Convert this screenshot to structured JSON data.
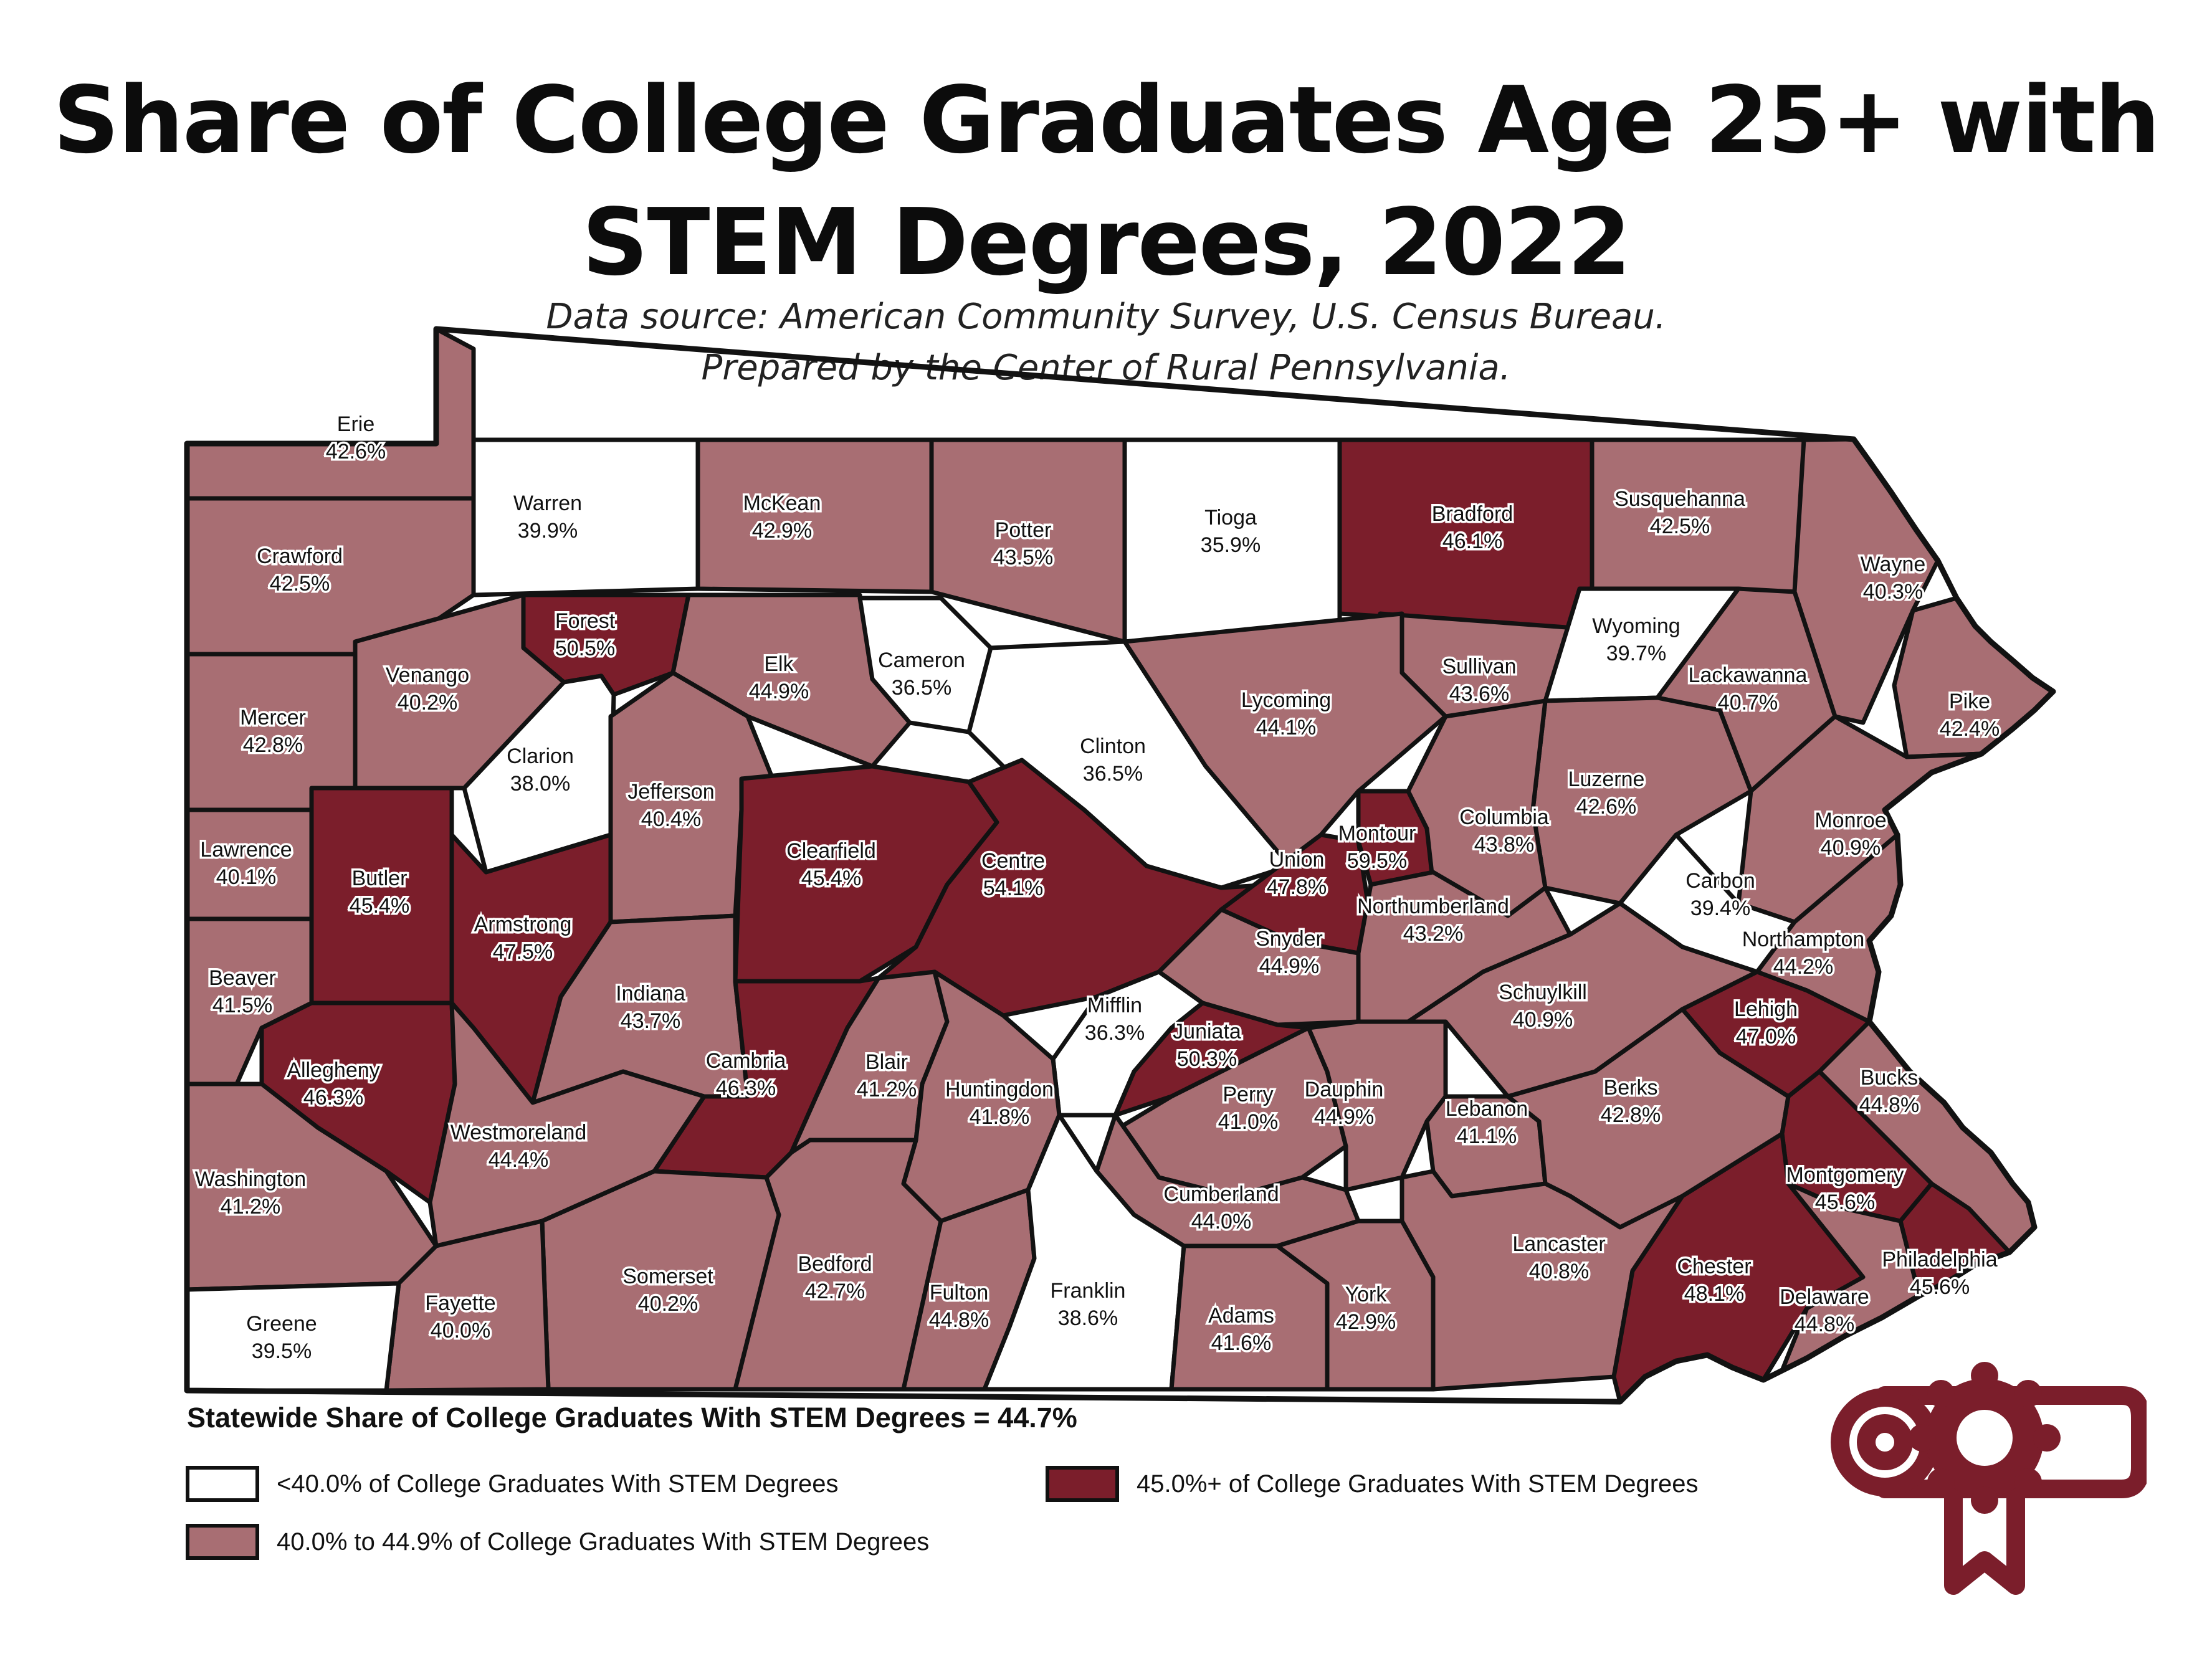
{
  "title": {
    "line1": "Share of College Graduates Age 25+ with",
    "line2": "STEM Degrees, 2022"
  },
  "source": {
    "line1": "Data source: American Community Survey, U.S. Census Bureau.",
    "line2": "Prepared by the Center of Rural Pennsylvania."
  },
  "statewide": "Statewide Share of College Graduates With STEM Degrees = 44.7%",
  "legend": {
    "low": {
      "label": "<40.0% of College Graduates With STEM Degrees",
      "color": "#ffffff"
    },
    "mid": {
      "label": "40.0% to 44.9% of College Graduates With STEM Degrees",
      "color": "#a86e73"
    },
    "high": {
      "label": "45.0%+ of College Graduates With STEM Degrees",
      "color": "#7b1e2b"
    }
  },
  "icon": "diploma-scroll-with-award-ribbon-icon",
  "counties": [
    {
      "name": "Erie",
      "value": "42.6%",
      "tier": "mid"
    },
    {
      "name": "Warren",
      "value": "39.9%",
      "tier": "low"
    },
    {
      "name": "McKean",
      "value": "42.9%",
      "tier": "mid"
    },
    {
      "name": "Potter",
      "value": "43.5%",
      "tier": "mid"
    },
    {
      "name": "Tioga",
      "value": "35.9%",
      "tier": "low"
    },
    {
      "name": "Bradford",
      "value": "46.1%",
      "tier": "high"
    },
    {
      "name": "Susquehanna",
      "value": "42.5%",
      "tier": "mid"
    },
    {
      "name": "Wayne",
      "value": "40.3%",
      "tier": "mid"
    },
    {
      "name": "Crawford",
      "value": "42.5%",
      "tier": "mid"
    },
    {
      "name": "Forest",
      "value": "50.5%",
      "tier": "high"
    },
    {
      "name": "Elk",
      "value": "44.9%",
      "tier": "mid"
    },
    {
      "name": "Cameron",
      "value": "36.5%",
      "tier": "low"
    },
    {
      "name": "Sullivan",
      "value": "43.6%",
      "tier": "mid"
    },
    {
      "name": "Wyoming",
      "value": "39.7%",
      "tier": "low"
    },
    {
      "name": "Lackawanna",
      "value": "40.7%",
      "tier": "mid"
    },
    {
      "name": "Pike",
      "value": "42.4%",
      "tier": "mid"
    },
    {
      "name": "Mercer",
      "value": "42.8%",
      "tier": "mid"
    },
    {
      "name": "Venango",
      "value": "40.2%",
      "tier": "mid"
    },
    {
      "name": "Clarion",
      "value": "38.0%",
      "tier": "low"
    },
    {
      "name": "Jefferson",
      "value": "40.4%",
      "tier": "mid"
    },
    {
      "name": "Clinton",
      "value": "36.5%",
      "tier": "low"
    },
    {
      "name": "Lycoming",
      "value": "44.1%",
      "tier": "mid"
    },
    {
      "name": "Luzerne",
      "value": "42.6%",
      "tier": "mid"
    },
    {
      "name": "Monroe",
      "value": "40.9%",
      "tier": "mid"
    },
    {
      "name": "Lawrence",
      "value": "40.1%",
      "tier": "mid"
    },
    {
      "name": "Butler",
      "value": "45.4%",
      "tier": "high"
    },
    {
      "name": "Armstrong",
      "value": "47.5%",
      "tier": "high"
    },
    {
      "name": "Clearfield",
      "value": "45.4%",
      "tier": "high"
    },
    {
      "name": "Centre",
      "value": "54.1%",
      "tier": "high"
    },
    {
      "name": "Union",
      "value": "47.8%",
      "tier": "high"
    },
    {
      "name": "Montour",
      "value": "59.5%",
      "tier": "high"
    },
    {
      "name": "Columbia",
      "value": "43.8%",
      "tier": "mid"
    },
    {
      "name": "Carbon",
      "value": "39.4%",
      "tier": "low"
    },
    {
      "name": "Northumberland",
      "value": "43.2%",
      "tier": "mid"
    },
    {
      "name": "Beaver",
      "value": "41.5%",
      "tier": "mid"
    },
    {
      "name": "Indiana",
      "value": "43.7%",
      "tier": "mid"
    },
    {
      "name": "Snyder",
      "value": "44.9%",
      "tier": "mid"
    },
    {
      "name": "Northampton",
      "value": "44.2%",
      "tier": "mid"
    },
    {
      "name": "Allegheny",
      "value": "46.3%",
      "tier": "high"
    },
    {
      "name": "Cambria",
      "value": "46.3%",
      "tier": "high"
    },
    {
      "name": "Blair",
      "value": "41.2%",
      "tier": "mid"
    },
    {
      "name": "Mifflin",
      "value": "36.3%",
      "tier": "low"
    },
    {
      "name": "Juniata",
      "value": "50.3%",
      "tier": "high"
    },
    {
      "name": "Schuylkill",
      "value": "40.9%",
      "tier": "mid"
    },
    {
      "name": "Lehigh",
      "value": "47.0%",
      "tier": "high"
    },
    {
      "name": "Huntingdon",
      "value": "41.8%",
      "tier": "mid"
    },
    {
      "name": "Perry",
      "value": "41.0%",
      "tier": "mid"
    },
    {
      "name": "Dauphin",
      "value": "44.9%",
      "tier": "mid"
    },
    {
      "name": "Lebanon",
      "value": "41.1%",
      "tier": "mid"
    },
    {
      "name": "Berks",
      "value": "42.8%",
      "tier": "mid"
    },
    {
      "name": "Bucks",
      "value": "44.8%",
      "tier": "mid"
    },
    {
      "name": "Westmoreland",
      "value": "44.4%",
      "tier": "mid"
    },
    {
      "name": "Washington",
      "value": "41.2%",
      "tier": "mid"
    },
    {
      "name": "Montgomery",
      "value": "45.6%",
      "tier": "high"
    },
    {
      "name": "Cumberland",
      "value": "44.0%",
      "tier": "mid"
    },
    {
      "name": "Lancaster",
      "value": "40.8%",
      "tier": "mid"
    },
    {
      "name": "Chester",
      "value": "48.1%",
      "tier": "high"
    },
    {
      "name": "Philadelphia",
      "value": "45.6%",
      "tier": "high"
    },
    {
      "name": "Somerset",
      "value": "40.2%",
      "tier": "mid"
    },
    {
      "name": "Bedford",
      "value": "42.7%",
      "tier": "mid"
    },
    {
      "name": "Fulton",
      "value": "44.8%",
      "tier": "mid"
    },
    {
      "name": "Franklin",
      "value": "38.6%",
      "tier": "low"
    },
    {
      "name": "Adams",
      "value": "41.6%",
      "tier": "mid"
    },
    {
      "name": "York",
      "value": "42.9%",
      "tier": "mid"
    },
    {
      "name": "Delaware",
      "value": "44.8%",
      "tier": "mid"
    },
    {
      "name": "Fayette",
      "value": "40.0%",
      "tier": "mid"
    },
    {
      "name": "Greene",
      "value": "39.5%",
      "tier": "low"
    }
  ]
}
